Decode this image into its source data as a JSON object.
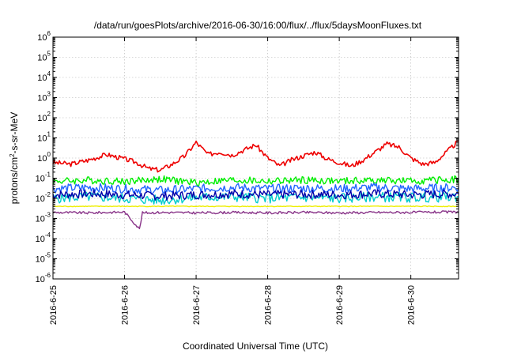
{
  "chart_data": {
    "type": "line",
    "title": "/data/run/goesPlots/archive/2016-06-30/16:00/flux/../flux/5daysMoonFluxes.txt",
    "xlabel": "Coordinated Universal Time (UTC)",
    "ylabel": {
      "pre": "protons/cm",
      "sup": "2",
      "post": "-s-sr-MeV"
    },
    "yscale": "log",
    "ylim": [
      1e-06,
      1000000.0
    ],
    "xlim": [
      "2016-06-25T00:00",
      "2016-06-30T16:00"
    ],
    "x_ticks": [
      "2016-6-25",
      "2016-6-26",
      "2016-6-27",
      "2016-6-28",
      "2016-6-29",
      "2016-6-30"
    ],
    "y_ticks": [
      {
        "base": "10",
        "exp": "-6"
      },
      {
        "base": "10",
        "exp": "-5"
      },
      {
        "base": "10",
        "exp": "-4"
      },
      {
        "base": "10",
        "exp": "-3"
      },
      {
        "base": "10",
        "exp": "-2"
      },
      {
        "base": "10",
        "exp": "-1"
      },
      {
        "base": "10",
        "exp": "0"
      },
      {
        "base": "10",
        "exp": "1"
      },
      {
        "base": "10",
        "exp": "2"
      },
      {
        "base": "10",
        "exp": "3"
      },
      {
        "base": "10",
        "exp": "4"
      },
      {
        "base": "10",
        "exp": "5"
      },
      {
        "base": "10",
        "exp": "6"
      }
    ],
    "grid": true,
    "legend": "none",
    "series": [
      {
        "color": "#ee0000",
        "x": [
          "2016-06-25T00:00",
          "2016-06-25T06:00",
          "2016-06-25T12:00",
          "2016-06-25T18:00",
          "2016-06-26T00:00",
          "2016-06-26T04:00",
          "2016-06-26T08:00",
          "2016-06-26T12:00",
          "2016-06-26T16:00",
          "2016-06-26T20:00",
          "2016-06-27T00:00",
          "2016-06-27T04:00",
          "2016-06-27T08:00",
          "2016-06-27T12:00",
          "2016-06-27T16:00",
          "2016-06-27T20:00",
          "2016-06-28T00:00",
          "2016-06-28T04:00",
          "2016-06-28T08:00",
          "2016-06-28T12:00",
          "2016-06-28T16:00",
          "2016-06-28T20:00",
          "2016-06-29T00:00",
          "2016-06-29T04:00",
          "2016-06-29T08:00",
          "2016-06-29T12:00",
          "2016-06-29T16:00",
          "2016-06-29T20:00",
          "2016-06-30T00:00",
          "2016-06-30T04:00",
          "2016-06-30T08:00",
          "2016-06-30T12:00",
          "2016-06-30T16:00"
        ],
        "y": [
          0.6,
          0.5,
          0.8,
          1.5,
          0.9,
          0.6,
          0.3,
          0.25,
          0.5,
          1.2,
          6.0,
          1.5,
          2.0,
          1.4,
          2.5,
          4.5,
          1.0,
          0.4,
          0.8,
          1.3,
          2.0,
          0.9,
          0.6,
          0.4,
          0.8,
          2.0,
          5.0,
          3.5,
          1.0,
          0.5,
          0.6,
          2.0,
          7.0
        ]
      },
      {
        "color": "#00ee00",
        "x": [
          "2016-06-25T00:00",
          "2016-06-25T12:00",
          "2016-06-26T00:00",
          "2016-06-26T12:00",
          "2016-06-27T00:00",
          "2016-06-27T12:00",
          "2016-06-28T00:00",
          "2016-06-28T12:00",
          "2016-06-29T00:00",
          "2016-06-29T12:00",
          "2016-06-30T00:00",
          "2016-06-30T16:00"
        ],
        "y": [
          0.07,
          0.08,
          0.07,
          0.09,
          0.06,
          0.08,
          0.07,
          0.08,
          0.07,
          0.08,
          0.07,
          0.09
        ]
      },
      {
        "color": "#00cccc",
        "x": [
          "2016-06-25T00:00",
          "2016-06-25T12:00",
          "2016-06-26T00:00",
          "2016-06-26T12:00",
          "2016-06-27T00:00",
          "2016-06-27T12:00",
          "2016-06-28T00:00",
          "2016-06-28T12:00",
          "2016-06-29T00:00",
          "2016-06-29T12:00",
          "2016-06-30T00:00",
          "2016-06-30T16:00"
        ],
        "y": [
          0.01,
          0.012,
          0.01,
          0.008,
          0.011,
          0.012,
          0.01,
          0.011,
          0.01,
          0.012,
          0.011,
          0.012
        ]
      },
      {
        "color": "#2266ff",
        "x": [
          "2016-06-25T00:00",
          "2016-06-25T12:00",
          "2016-06-26T00:00",
          "2016-06-26T12:00",
          "2016-06-27T00:00",
          "2016-06-27T12:00",
          "2016-06-28T00:00",
          "2016-06-28T12:00",
          "2016-06-29T00:00",
          "2016-06-29T12:00",
          "2016-06-30T00:00",
          "2016-06-30T16:00"
        ],
        "y": [
          0.03,
          0.035,
          0.03,
          0.025,
          0.03,
          0.035,
          0.03,
          0.032,
          0.03,
          0.035,
          0.03,
          0.035
        ]
      },
      {
        "color": "#0000aa",
        "x": [
          "2016-06-25T00:00",
          "2016-06-25T12:00",
          "2016-06-26T00:00",
          "2016-06-26T12:00",
          "2016-06-27T00:00",
          "2016-06-27T12:00",
          "2016-06-28T00:00",
          "2016-06-28T12:00",
          "2016-06-29T00:00",
          "2016-06-29T12:00",
          "2016-06-30T00:00",
          "2016-06-30T16:00"
        ],
        "y": [
          0.015,
          0.017,
          0.015,
          0.013,
          0.015,
          0.017,
          0.015,
          0.016,
          0.015,
          0.017,
          0.015,
          0.017
        ]
      },
      {
        "color": "#eeee00",
        "x": [
          "2016-06-25T00:00",
          "2016-06-26T00:00",
          "2016-06-27T00:00",
          "2016-06-28T00:00",
          "2016-06-29T00:00",
          "2016-06-30T00:00",
          "2016-06-30T16:00"
        ],
        "y": [
          0.004,
          0.004,
          0.004,
          0.004,
          0.004,
          0.004,
          0.004
        ]
      },
      {
        "color": "#883388",
        "x": [
          "2016-06-25T00:00",
          "2016-06-25T12:00",
          "2016-06-26T00:00",
          "2016-06-26T05:00",
          "2016-06-26T06:00",
          "2016-06-26T12:00",
          "2016-06-27T00:00",
          "2016-06-27T12:00",
          "2016-06-28T00:00",
          "2016-06-28T12:00",
          "2016-06-29T00:00",
          "2016-06-29T12:00",
          "2016-06-30T00:00",
          "2016-06-30T16:00"
        ],
        "y": [
          0.002,
          0.0019,
          0.0021,
          0.0003,
          0.0019,
          0.002,
          0.0019,
          0.002,
          0.0019,
          0.002,
          0.0019,
          0.002,
          0.002,
          0.0021
        ]
      }
    ]
  }
}
